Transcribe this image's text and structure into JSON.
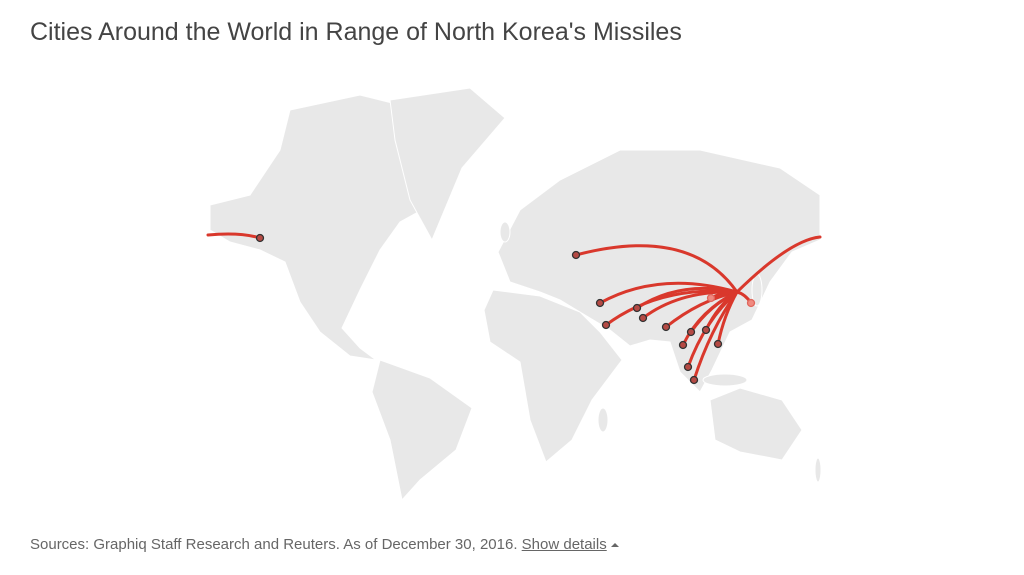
{
  "header": {
    "title": "Cities Around the World in Range of North Korea's Missiles"
  },
  "footer": {
    "sources": "Sources: Graphiq Staff Research and Reuters. As of December 30, 2016.",
    "link": "Show details"
  }
}
